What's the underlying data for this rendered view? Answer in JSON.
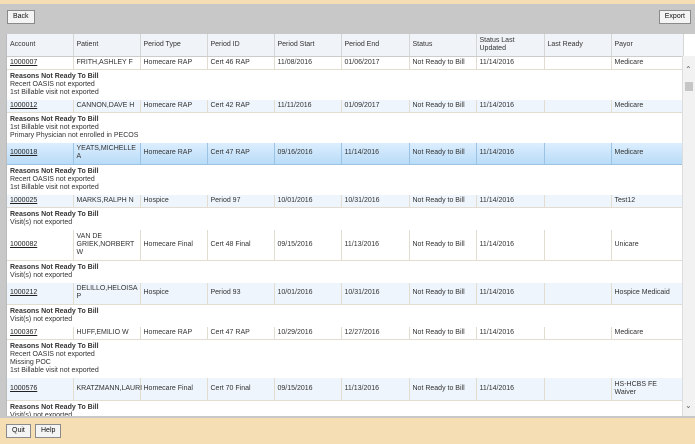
{
  "toolbar": {
    "back": "Back",
    "export": "Export"
  },
  "footer": {
    "quit": "Quit",
    "help": "Help"
  },
  "columns": [
    "Account",
    "Patient",
    "Period Type",
    "Period ID",
    "Period Start",
    "Period End",
    "Status",
    "Status Last Updated",
    "Last Ready",
    "Payor"
  ],
  "reasons_title": "Reasons Not Ready To Bill",
  "rows": [
    {
      "account": "1000007",
      "patient": "FRITH,ASHLEY F",
      "period_type": "Homecare RAP",
      "period_id": "Cert 46 RAP",
      "start": "11/08/2016",
      "end": "01/06/2017",
      "status": "Not Ready to Bill",
      "updated": "11/14/2016",
      "last_ready": "",
      "payor": "Medicare",
      "reasons": [
        "Recert OASIS not exported",
        "1st Billable visit not exported"
      ]
    },
    {
      "account": "1000012",
      "patient": "CANNON,DAVE H",
      "period_type": "Homecare RAP",
      "period_id": "Cert 42 RAP",
      "start": "11/11/2016",
      "end": "01/09/2017",
      "status": "Not Ready to Bill",
      "updated": "11/14/2016",
      "last_ready": "",
      "payor": "Medicare",
      "reasons": [
        "1st Billable visit not exported",
        "Primary Physician not enrolled in PECOS"
      ]
    },
    {
      "account": "1000018",
      "patient": "YEATS,MICHELLE A",
      "period_type": "Homecare RAP",
      "period_id": "Cert 47 RAP",
      "start": "09/16/2016",
      "end": "11/14/2016",
      "status": "Not Ready to Bill",
      "updated": "11/14/2016",
      "last_ready": "",
      "payor": "Medicare",
      "reasons": [
        "Recert OASIS not exported",
        "1st Billable visit not exported"
      ]
    },
    {
      "account": "1000025",
      "patient": "MARKS,RALPH N",
      "period_type": "Hospice",
      "period_id": "Period 97",
      "start": "10/01/2016",
      "end": "10/31/2016",
      "status": "Not Ready to Bill",
      "updated": "11/14/2016",
      "last_ready": "",
      "payor": "Test12",
      "reasons": [
        "Visit(s) not exported"
      ]
    },
    {
      "account": "1000082",
      "patient": "VAN DE GRIEK,NORBERT W",
      "period_type": "Homecare Final",
      "period_id": "Cert 48 Final",
      "start": "09/15/2016",
      "end": "11/13/2016",
      "status": "Not Ready to Bill",
      "updated": "11/14/2016",
      "last_ready": "",
      "payor": "Unicare",
      "reasons": [
        "Visit(s) not exported"
      ]
    },
    {
      "account": "1000212",
      "patient": "DELILLO,HELOISA P",
      "period_type": "Hospice",
      "period_id": "Period 93",
      "start": "10/01/2016",
      "end": "10/31/2016",
      "status": "Not Ready to Bill",
      "updated": "11/14/2016",
      "last_ready": "",
      "payor": "Hospice Medicaid",
      "reasons": [
        "Visit(s) not exported"
      ]
    },
    {
      "account": "1000367",
      "patient": "HUFF,EMILIO W",
      "period_type": "Homecare RAP",
      "period_id": "Cert 47 RAP",
      "start": "10/29/2016",
      "end": "12/27/2016",
      "status": "Not Ready to Bill",
      "updated": "11/14/2016",
      "last_ready": "",
      "payor": "Medicare",
      "reasons": [
        "Recert OASIS not exported",
        "Missing POC",
        "1st Billable visit not exported"
      ]
    },
    {
      "account": "1000576",
      "patient": "KRATZMANN,LAURI",
      "period_type": "Homecare Final",
      "period_id": "Cert 70 Final",
      "start": "09/15/2016",
      "end": "11/13/2016",
      "status": "Not Ready to Bill",
      "updated": "11/14/2016",
      "last_ready": "",
      "payor": "HS-HCBS FE Waiver",
      "reasons": [
        "Visit(s) not exported"
      ]
    }
  ]
}
